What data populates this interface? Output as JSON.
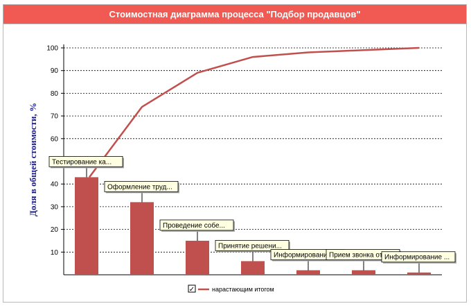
{
  "chart_data": {
    "type": "bar",
    "title": "Стоимостная диаграмма процесса \"Подбор продавцов\"",
    "ylabel": "Доля в общей стоимости, %",
    "xlabel": "",
    "ylim": [
      0,
      100
    ],
    "yticks": [
      10,
      20,
      30,
      40,
      60,
      70,
      80,
      90,
      100
    ],
    "grid": true,
    "categories": [
      "Тестирование ка...",
      "Оформление труд...",
      "Проведение собе...",
      "Принятие решени...",
      "Информирование ...",
      "Прием звонка от...",
      "Информирование ..."
    ],
    "series": [
      {
        "type": "bar",
        "values": [
          43,
          32,
          15,
          6,
          2,
          2,
          1
        ],
        "color": "#c0504d"
      },
      {
        "type": "line",
        "name": "нарастающим итогом",
        "values": [
          43,
          74,
          89,
          96,
          98,
          99,
          100
        ],
        "color": "#c0504d"
      }
    ],
    "legend": {
      "position": "bottom",
      "checked": true,
      "checkmark": "✓"
    }
  }
}
